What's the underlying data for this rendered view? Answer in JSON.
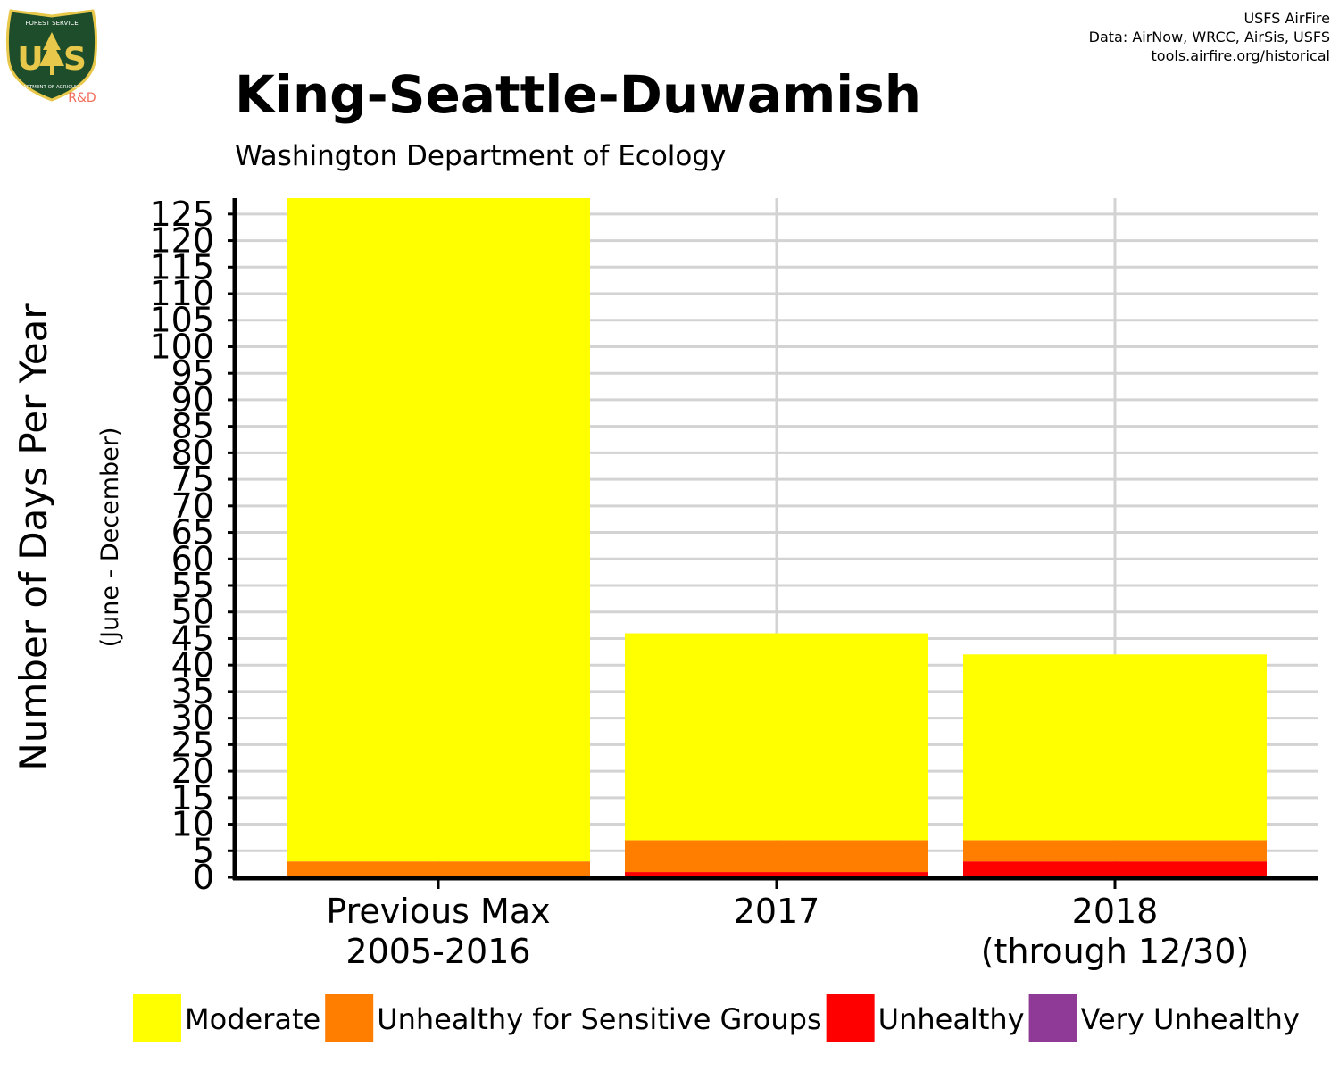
{
  "header": {
    "credits": [
      "USFS AirFire",
      "Data: AirNow, WRCC, AirSis, USFS",
      "tools.airfire.org/historical"
    ],
    "logo": {
      "top_text": "FOREST SERVICE",
      "letters_left": "U",
      "letters_right": "S",
      "bottom_text": "DEPARTMENT OF AGRICULTURE",
      "badge": "R&D"
    }
  },
  "chart_data": {
    "type": "bar",
    "stacked": true,
    "title": "King-Seattle-Duwamish",
    "subtitle": "Washington Department of Ecology",
    "ylabel": "Number of Days Per Year",
    "ylabel_sub": "(June - December)",
    "xlabel": "",
    "ylim": [
      0,
      128
    ],
    "yticks": [
      0,
      5,
      10,
      15,
      20,
      25,
      30,
      35,
      40,
      45,
      50,
      55,
      60,
      65,
      70,
      75,
      80,
      85,
      90,
      95,
      100,
      105,
      110,
      115,
      120,
      125
    ],
    "grid": true,
    "legend_position": "bottom",
    "categories": [
      [
        "Previous Max",
        "2005-2016"
      ],
      [
        "2017"
      ],
      [
        "2018",
        "(through 12/30)"
      ]
    ],
    "series": [
      {
        "name": "Very Unhealthy",
        "color": "#8E3A96",
        "values": [
          0,
          0,
          0
        ]
      },
      {
        "name": "Unhealthy",
        "color": "#FF0000",
        "values": [
          0,
          1,
          3
        ]
      },
      {
        "name": "Unhealthy for Sensitive Groups",
        "color": "#FF7E00",
        "values": [
          3,
          6,
          4
        ]
      },
      {
        "name": "Moderate",
        "color": "#FFFF00",
        "values": [
          125,
          39,
          35
        ]
      }
    ],
    "legend_order": [
      "Moderate",
      "Unhealthy for Sensitive Groups",
      "Unhealthy",
      "Very Unhealthy"
    ]
  }
}
